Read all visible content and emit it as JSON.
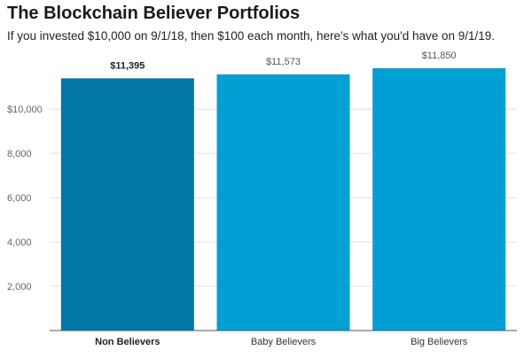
{
  "header": {
    "title": "The Blockchain Believer Portfolios",
    "subtitle": "If you invested $10,000 on 9/1/18, then $100 each month, here's what you'd have on 9/1/19."
  },
  "colors": {
    "highlight_bar": "#0377a3",
    "bar": "#00a0d4",
    "gridline": "#e0e0e0",
    "axis": "#555555"
  },
  "chart_data": {
    "type": "bar",
    "categories": [
      "Non Believers",
      "Baby Believers",
      "Big Believers"
    ],
    "values": [
      11395,
      11573,
      11850
    ],
    "value_labels": [
      "$11,395",
      "$11,573",
      "$11,850"
    ],
    "highlighted_index": 0,
    "ylim": [
      0,
      11850
    ],
    "yticks": [
      2000,
      4000,
      6000,
      8000,
      10000
    ],
    "ytick_labels": [
      "2,000",
      "4,000",
      "6,000",
      "8,000",
      "$10,000"
    ],
    "grid": true,
    "legend": "none"
  }
}
